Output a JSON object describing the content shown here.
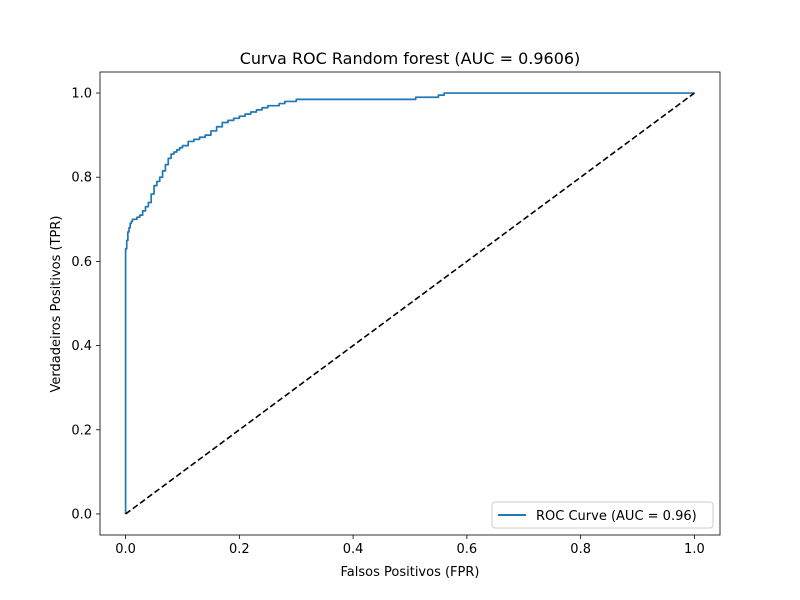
{
  "chart_data": {
    "type": "line",
    "title": "Curva ROC Random forest (AUC = 0.9606)",
    "xlabel": "Falsos Positivos (FPR)",
    "ylabel": "Verdadeiros Positivos (TPR)",
    "xlim": [
      -0.045,
      1.045
    ],
    "ylim": [
      -0.05,
      1.05
    ],
    "xticks": [
      0.0,
      0.2,
      0.4,
      0.6,
      0.8,
      1.0
    ],
    "xtick_labels": [
      "0.0",
      "0.2",
      "0.4",
      "0.6",
      "0.8",
      "1.0"
    ],
    "yticks": [
      0.0,
      0.2,
      0.4,
      0.6,
      0.8,
      1.0
    ],
    "ytick_labels": [
      "0.0",
      "0.2",
      "0.4",
      "0.6",
      "0.8",
      "1.0"
    ],
    "grid": false,
    "legend_position": "lower-right",
    "series": [
      {
        "name": "ROC Curve (AUC = 0.96)",
        "color": "#1f77b4",
        "style": "solid",
        "step": true,
        "x": [
          0.0,
          0.0,
          0.002,
          0.004,
          0.006,
          0.008,
          0.01,
          0.012,
          0.015,
          0.02,
          0.025,
          0.03,
          0.035,
          0.04,
          0.045,
          0.05,
          0.055,
          0.06,
          0.065,
          0.07,
          0.075,
          0.08,
          0.085,
          0.09,
          0.095,
          0.1,
          0.11,
          0.12,
          0.13,
          0.14,
          0.15,
          0.16,
          0.17,
          0.18,
          0.19,
          0.2,
          0.21,
          0.22,
          0.23,
          0.24,
          0.25,
          0.26,
          0.27,
          0.28,
          0.3,
          0.32,
          0.35,
          0.4,
          0.45,
          0.5,
          0.51,
          0.52,
          0.55,
          0.56,
          0.6,
          0.7,
          0.8,
          0.9,
          1.0
        ],
        "y": [
          0.0,
          0.63,
          0.65,
          0.67,
          0.68,
          0.69,
          0.695,
          0.7,
          0.7,
          0.705,
          0.71,
          0.72,
          0.73,
          0.74,
          0.76,
          0.78,
          0.79,
          0.8,
          0.815,
          0.83,
          0.845,
          0.855,
          0.86,
          0.865,
          0.87,
          0.875,
          0.885,
          0.89,
          0.895,
          0.9,
          0.91,
          0.92,
          0.93,
          0.935,
          0.94,
          0.945,
          0.95,
          0.955,
          0.96,
          0.965,
          0.97,
          0.97,
          0.975,
          0.98,
          0.985,
          0.985,
          0.985,
          0.985,
          0.985,
          0.985,
          0.99,
          0.99,
          0.995,
          1.0,
          1.0,
          1.0,
          1.0,
          1.0,
          1.0
        ]
      },
      {
        "name": "",
        "color": "#000000",
        "style": "dashed",
        "step": false,
        "x": [
          0.0,
          1.0
        ],
        "y": [
          0.0,
          1.0
        ]
      }
    ]
  }
}
